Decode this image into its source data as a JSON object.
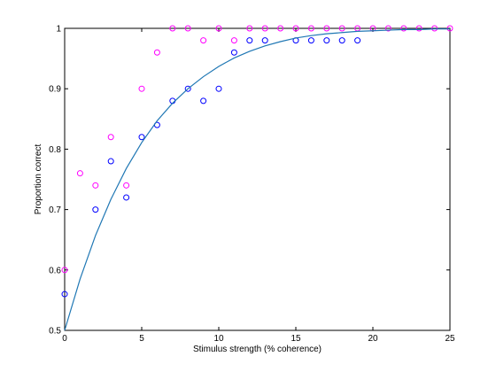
{
  "chart_data": {
    "type": "scatter",
    "title": "",
    "xlabel": "Stimulus strength (% coherence)",
    "ylabel": "Proportion correct",
    "xlim": [
      0,
      25
    ],
    "ylim": [
      0.5,
      1.0
    ],
    "x_ticks": [
      "0",
      "5",
      "10",
      "15",
      "20",
      "25"
    ],
    "y_ticks": [
      "0.5",
      "0.6",
      "0.7",
      "0.8",
      "0.9",
      "1"
    ],
    "grid": false,
    "legend": "none",
    "series": [
      {
        "kind": "scatter",
        "marker": "circle-open",
        "color": "#ff00ff",
        "x": [
          0,
          1,
          2,
          3,
          4,
          5,
          6,
          7,
          8,
          9,
          10,
          11,
          12,
          13,
          14,
          15,
          16,
          17,
          18,
          19,
          20,
          21,
          22,
          23,
          24,
          25
        ],
        "y": [
          0.6,
          0.76,
          0.74,
          0.82,
          0.74,
          0.9,
          0.96,
          1.0,
          1.0,
          0.98,
          1.0,
          0.98,
          1.0,
          1.0,
          1.0,
          1.0,
          1.0,
          1.0,
          1.0,
          1.0,
          1.0,
          1.0,
          1.0,
          1.0,
          1.0,
          1.0
        ]
      },
      {
        "kind": "scatter",
        "marker": "circle-open",
        "color": "#0000ff",
        "x": [
          0,
          2,
          3,
          4,
          5,
          6,
          7,
          8,
          9,
          10,
          11,
          12,
          13,
          15,
          16,
          17,
          18,
          19
        ],
        "y": [
          0.56,
          0.7,
          0.78,
          0.72,
          0.82,
          0.84,
          0.88,
          0.9,
          0.88,
          0.9,
          0.96,
          0.98,
          0.98,
          0.98,
          0.98,
          0.98,
          0.98,
          0.98
        ]
      },
      {
        "kind": "line",
        "color": "#1f77b4",
        "x": [
          0,
          1,
          2,
          3,
          4,
          5,
          6,
          7,
          8,
          9,
          10,
          11,
          12,
          13,
          14,
          15,
          16,
          17,
          18,
          19,
          20,
          21,
          22,
          23,
          24,
          25
        ],
        "y": [
          0.5,
          0.585,
          0.657,
          0.717,
          0.768,
          0.811,
          0.847,
          0.876,
          0.9,
          0.92,
          0.937,
          0.951,
          0.962,
          0.971,
          0.978,
          0.984,
          0.988,
          0.991,
          0.993,
          0.995,
          0.996,
          0.997,
          0.998,
          0.998,
          0.999,
          0.999
        ]
      }
    ]
  }
}
